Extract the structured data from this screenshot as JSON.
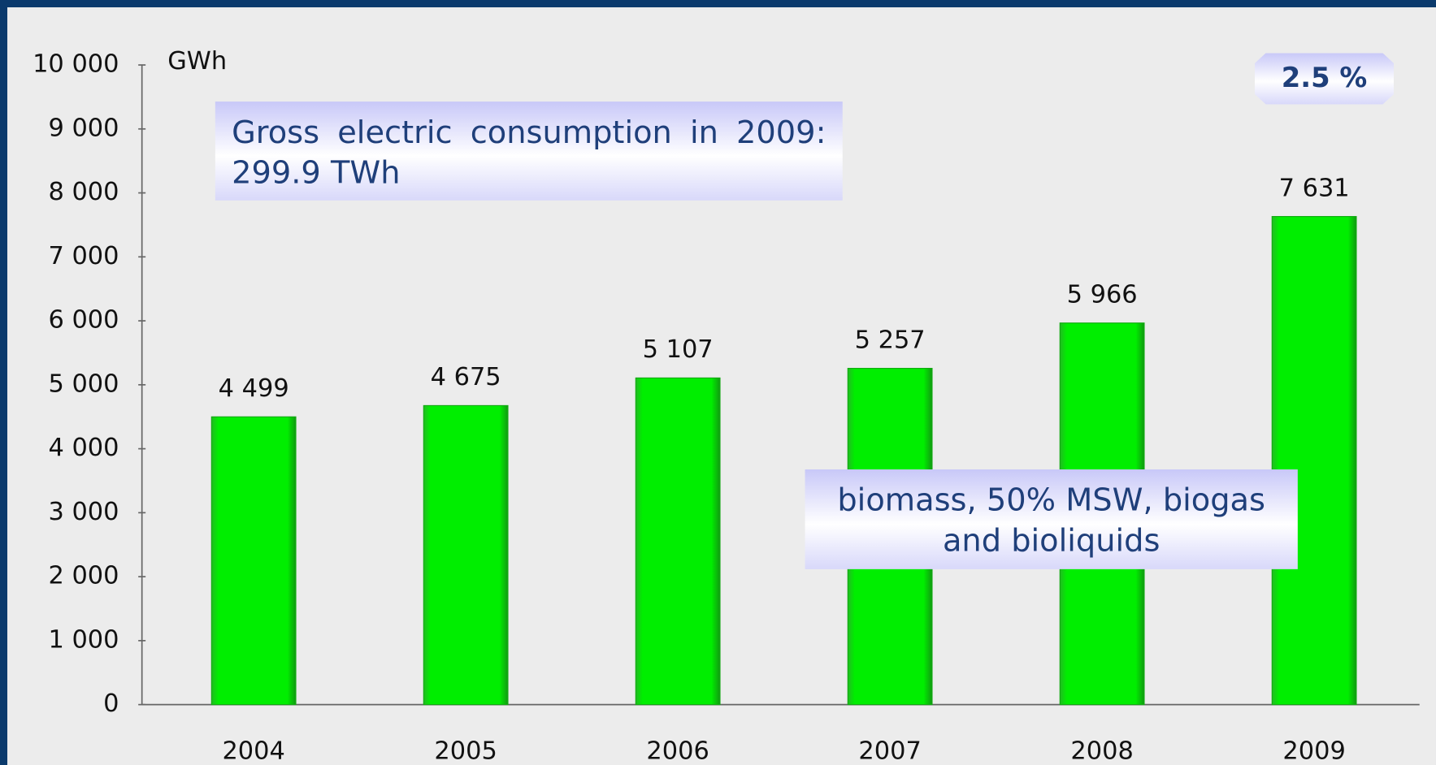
{
  "chart_data": {
    "type": "bar",
    "y_axis_label": "GWh",
    "categories": [
      "2004",
      "2005",
      "2006",
      "2007",
      "2008",
      "2009"
    ],
    "values": [
      4499,
      4675,
      5107,
      5257,
      5966,
      7631
    ],
    "value_labels": [
      "4 499",
      "4 675",
      "5 107",
      "5 257",
      "5 966",
      "7 631"
    ],
    "color": "#00ee00",
    "ylim": [
      0,
      10000
    ],
    "yticks": [
      0,
      {
        "value": 1000,
        "label": "1 000"
      },
      {
        "value": 2000,
        "label": "2 000"
      },
      {
        "value": 3000,
        "label": "3 000"
      },
      {
        "value": 4000,
        "label": "4 000"
      },
      {
        "value": 5000,
        "label": "5 000"
      },
      {
        "value": 6000,
        "label": "6 000"
      },
      {
        "value": 7000,
        "label": "7 000"
      },
      {
        "value": 8000,
        "label": "8 000"
      },
      {
        "value": 9000,
        "label": "9 000"
      },
      {
        "value": 10000,
        "label": "10 000"
      }
    ],
    "annotations": [
      "Gross electric consumption in 2009: 299.9 TWh",
      "biomass, 50% MSW, biogas and bioliquids",
      "2.5 %"
    ]
  }
}
